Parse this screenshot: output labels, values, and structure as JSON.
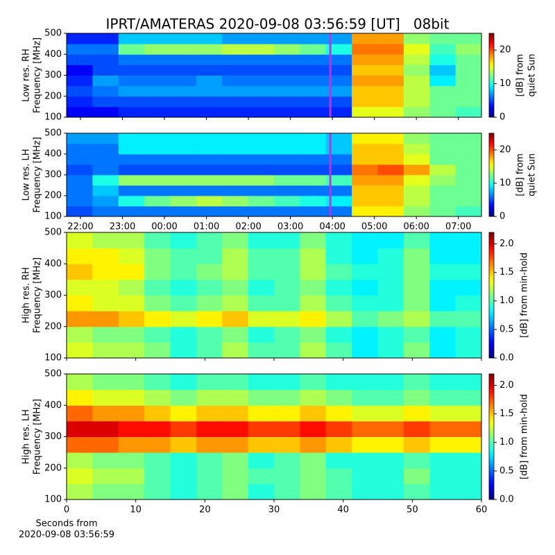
{
  "title": "IPRT/AMATERAS 2020-09-08 03:56:59 [UT]   08bit",
  "chart_data": [
    {
      "type": "heatmap",
      "ylabel": [
        "Low res. RH",
        "Frequency [MHz]"
      ],
      "colormap": "jet",
      "xlim": [
        -2.33,
        7.55
      ],
      "xticks": [
        -2,
        -1,
        0,
        1,
        2,
        3,
        4,
        5,
        6,
        7
      ],
      "tick_labels": false,
      "ylim": [
        100,
        500
      ],
      "yticks": [
        100,
        200,
        300,
        400,
        500
      ],
      "clim": [
        0,
        25
      ],
      "cticks": [
        0,
        10,
        20
      ],
      "colorbar_label": [
        "[dB] from",
        "quiet Sun"
      ],
      "marker_x": 3.95,
      "marker_color": "#c030e0",
      "values": [
        [
          3,
          3,
          4,
          4,
          4,
          4,
          4,
          4,
          4,
          4,
          4,
          15,
          15,
          13,
          12,
          11
        ],
        [
          4,
          5,
          5,
          5,
          5,
          5,
          5,
          5,
          5,
          5,
          5,
          17,
          17,
          14,
          12,
          12
        ],
        [
          5,
          6,
          7,
          7,
          7,
          7,
          7,
          7,
          7,
          7,
          7,
          17,
          17,
          14,
          12,
          12
        ],
        [
          4,
          7,
          6,
          6,
          6,
          7,
          6,
          6,
          6,
          6,
          6,
          18,
          18,
          14,
          9,
          12
        ],
        [
          3,
          5,
          5,
          5,
          5,
          5,
          5,
          5,
          5,
          5,
          5,
          17,
          17,
          13,
          8,
          12
        ],
        [
          5,
          5,
          6,
          6,
          6,
          6,
          6,
          6,
          6,
          6,
          6,
          18,
          18,
          14,
          10,
          12
        ],
        [
          6,
          6,
          12,
          13,
          13,
          13,
          14,
          14,
          13,
          12,
          10,
          19,
          19,
          15,
          11,
          13
        ],
        [
          4,
          4,
          8,
          8,
          8,
          8,
          7,
          7,
          7,
          7,
          7,
          18,
          18,
          13,
          12,
          12
        ]
      ]
    },
    {
      "type": "heatmap",
      "ylabel": [
        "Low res. LH",
        "Frequency [MHz]"
      ],
      "colormap": "jet",
      "xlim": [
        -2.33,
        7.55
      ],
      "xticks": [
        {
          "value": -2,
          "label": "22:00"
        },
        {
          "value": -1,
          "label": "23:00"
        },
        {
          "value": 0,
          "label": "00:00"
        },
        {
          "value": 1,
          "label": "01:00"
        },
        {
          "value": 2,
          "label": "02:00"
        },
        {
          "value": 3,
          "label": "03:00"
        },
        {
          "value": 4,
          "label": "04:00"
        },
        {
          "value": 5,
          "label": "05:00"
        },
        {
          "value": 6,
          "label": "06:00"
        },
        {
          "value": 7,
          "label": "07:00"
        }
      ],
      "ylim": [
        100,
        500
      ],
      "yticks": [
        100,
        200,
        300,
        400,
        500
      ],
      "clim": [
        0,
        25
      ],
      "cticks": [
        0,
        10,
        20
      ],
      "colorbar_label": [
        "[dB] from",
        "quiet Sun"
      ],
      "marker_x": 3.95,
      "marker_color": "#c030e0",
      "values": [
        [
          5,
          6,
          6,
          6,
          6,
          6,
          6,
          6,
          6,
          6,
          6,
          16,
          16,
          13,
          12,
          11
        ],
        [
          6,
          7,
          10,
          12,
          13,
          14,
          13,
          12,
          11,
          10,
          9,
          17,
          17,
          14,
          12,
          12
        ],
        [
          6,
          8,
          6,
          6,
          6,
          6,
          6,
          6,
          6,
          6,
          6,
          17,
          17,
          14,
          12,
          12
        ],
        [
          6,
          10,
          13,
          13,
          13,
          13,
          13,
          13,
          12,
          12,
          11,
          18,
          18,
          15,
          13,
          12
        ],
        [
          5,
          6,
          5,
          5,
          5,
          5,
          5,
          5,
          5,
          5,
          5,
          19,
          20,
          18,
          14,
          12
        ],
        [
          6,
          6,
          6,
          6,
          6,
          6,
          6,
          6,
          6,
          6,
          6,
          17,
          17,
          15,
          12,
          12
        ],
        [
          6,
          6,
          9,
          9,
          9,
          9,
          9,
          9,
          9,
          9,
          8,
          17,
          17,
          14,
          12,
          12
        ],
        [
          7,
          7,
          9,
          9,
          9,
          9,
          9,
          9,
          9,
          9,
          8,
          16,
          16,
          13,
          12,
          12
        ]
      ]
    },
    {
      "type": "heatmap",
      "ylabel": [
        "High res. RH",
        "Frequency [MHz]"
      ],
      "colormap": "jet",
      "xlim": [
        0,
        60
      ],
      "xticks": [
        0,
        10,
        20,
        30,
        40,
        50,
        60
      ],
      "tick_labels": false,
      "ylim": [
        100,
        500
      ],
      "yticks": [
        100,
        200,
        300,
        400,
        500
      ],
      "clim": [
        0,
        2.2
      ],
      "cticks": [
        {
          "value": 0,
          "label": "0.0"
        },
        {
          "value": 0.5,
          "label": "0.5"
        },
        {
          "value": 1,
          "label": "1.0"
        },
        {
          "value": 1.5,
          "label": "1.5"
        },
        {
          "value": 2,
          "label": "2.0"
        }
      ],
      "colorbar_label": [
        "[dB] from min-hold"
      ],
      "values": [
        [
          1.3,
          1.2,
          1.2,
          1.1,
          0.9,
          1.0,
          1.2,
          1.0,
          1.0,
          1.2,
          1.0,
          0.8,
          0.9,
          1.1,
          0.8,
          0.9
        ],
        [
          1.2,
          1.1,
          1.1,
          1.0,
          0.9,
          1.0,
          1.1,
          0.9,
          1.0,
          1.1,
          0.9,
          0.8,
          0.9,
          1.0,
          0.8,
          0.9
        ],
        [
          1.6,
          1.6,
          1.5,
          1.4,
          1.3,
          1.4,
          1.5,
          1.3,
          1.3,
          1.4,
          1.2,
          1.0,
          1.1,
          1.2,
          1.0,
          1.0
        ],
        [
          1.4,
          1.3,
          1.3,
          1.1,
          1.0,
          1.1,
          1.2,
          1.0,
          1.0,
          1.2,
          1.0,
          0.9,
          0.9,
          1.1,
          0.8,
          0.9
        ],
        [
          1.3,
          1.3,
          1.2,
          1.0,
          0.9,
          1.0,
          1.1,
          0.9,
          1.0,
          1.1,
          0.9,
          0.8,
          0.9,
          1.1,
          0.8,
          0.8
        ],
        [
          1.5,
          1.4,
          1.4,
          1.1,
          1.0,
          1.1,
          1.2,
          1.0,
          1.0,
          1.2,
          1.0,
          0.9,
          0.9,
          1.1,
          0.9,
          0.9
        ],
        [
          1.4,
          1.4,
          1.3,
          1.1,
          1.0,
          1.0,
          1.2,
          1.0,
          1.0,
          1.2,
          0.9,
          0.8,
          0.9,
          1.1,
          0.8,
          0.8
        ],
        [
          1.3,
          1.2,
          1.2,
          1.0,
          0.9,
          1.0,
          1.1,
          0.9,
          0.9,
          1.1,
          0.9,
          0.8,
          0.8,
          1.0,
          0.8,
          0.8
        ]
      ]
    },
    {
      "type": "heatmap",
      "ylabel": [
        "High res. LH",
        "Frequency [MHz]"
      ],
      "colormap": "jet",
      "xlabel": [
        "Seconds from",
        "2020-09-08 03:56:59"
      ],
      "xlim": [
        0,
        60
      ],
      "xticks": [
        0,
        10,
        20,
        30,
        40,
        50,
        60
      ],
      "ylim": [
        100,
        500
      ],
      "yticks": [
        100,
        200,
        300,
        400,
        500
      ],
      "clim": [
        0,
        2.2
      ],
      "cticks": [
        {
          "value": 0,
          "label": "0.0"
        },
        {
          "value": 0.5,
          "label": "0.5"
        },
        {
          "value": 1,
          "label": "1.0"
        },
        {
          "value": 1.5,
          "label": "1.5"
        },
        {
          "value": 2,
          "label": "2.0"
        }
      ],
      "colorbar_label": [
        "[dB] from min-hold"
      ],
      "values": [
        [
          1.2,
          1.1,
          1.1,
          1.0,
          0.9,
          1.0,
          1.1,
          0.9,
          1.0,
          1.1,
          1.0,
          0.9,
          0.9,
          1.0,
          0.9,
          0.9
        ],
        [
          1.3,
          1.2,
          1.2,
          1.0,
          0.9,
          1.0,
          1.1,
          1.0,
          1.0,
          1.1,
          1.0,
          0.9,
          0.9,
          1.1,
          0.9,
          0.9
        ],
        [
          1.2,
          1.1,
          1.1,
          1.0,
          0.9,
          1.0,
          1.1,
          0.9,
          1.0,
          1.1,
          0.9,
          0.9,
          0.9,
          1.0,
          0.9,
          0.9
        ],
        [
          1.7,
          1.7,
          1.6,
          1.6,
          1.5,
          1.6,
          1.6,
          1.5,
          1.5,
          1.6,
          1.5,
          1.4,
          1.4,
          1.5,
          1.4,
          1.4
        ],
        [
          2.0,
          2.0,
          1.9,
          1.9,
          1.8,
          1.9,
          1.9,
          1.8,
          1.8,
          1.9,
          1.8,
          1.7,
          1.7,
          1.8,
          1.7,
          1.7
        ],
        [
          1.7,
          1.6,
          1.6,
          1.5,
          1.4,
          1.5,
          1.5,
          1.4,
          1.4,
          1.5,
          1.4,
          1.3,
          1.3,
          1.4,
          1.3,
          1.3
        ],
        [
          1.4,
          1.3,
          1.3,
          1.2,
          1.1,
          1.2,
          1.2,
          1.1,
          1.1,
          1.2,
          1.1,
          1.0,
          1.0,
          1.1,
          1.0,
          1.0
        ],
        [
          1.2,
          1.1,
          1.1,
          1.0,
          0.9,
          1.0,
          1.0,
          0.9,
          0.9,
          1.0,
          0.9,
          0.9,
          0.9,
          1.0,
          0.9,
          0.9
        ]
      ]
    }
  ]
}
